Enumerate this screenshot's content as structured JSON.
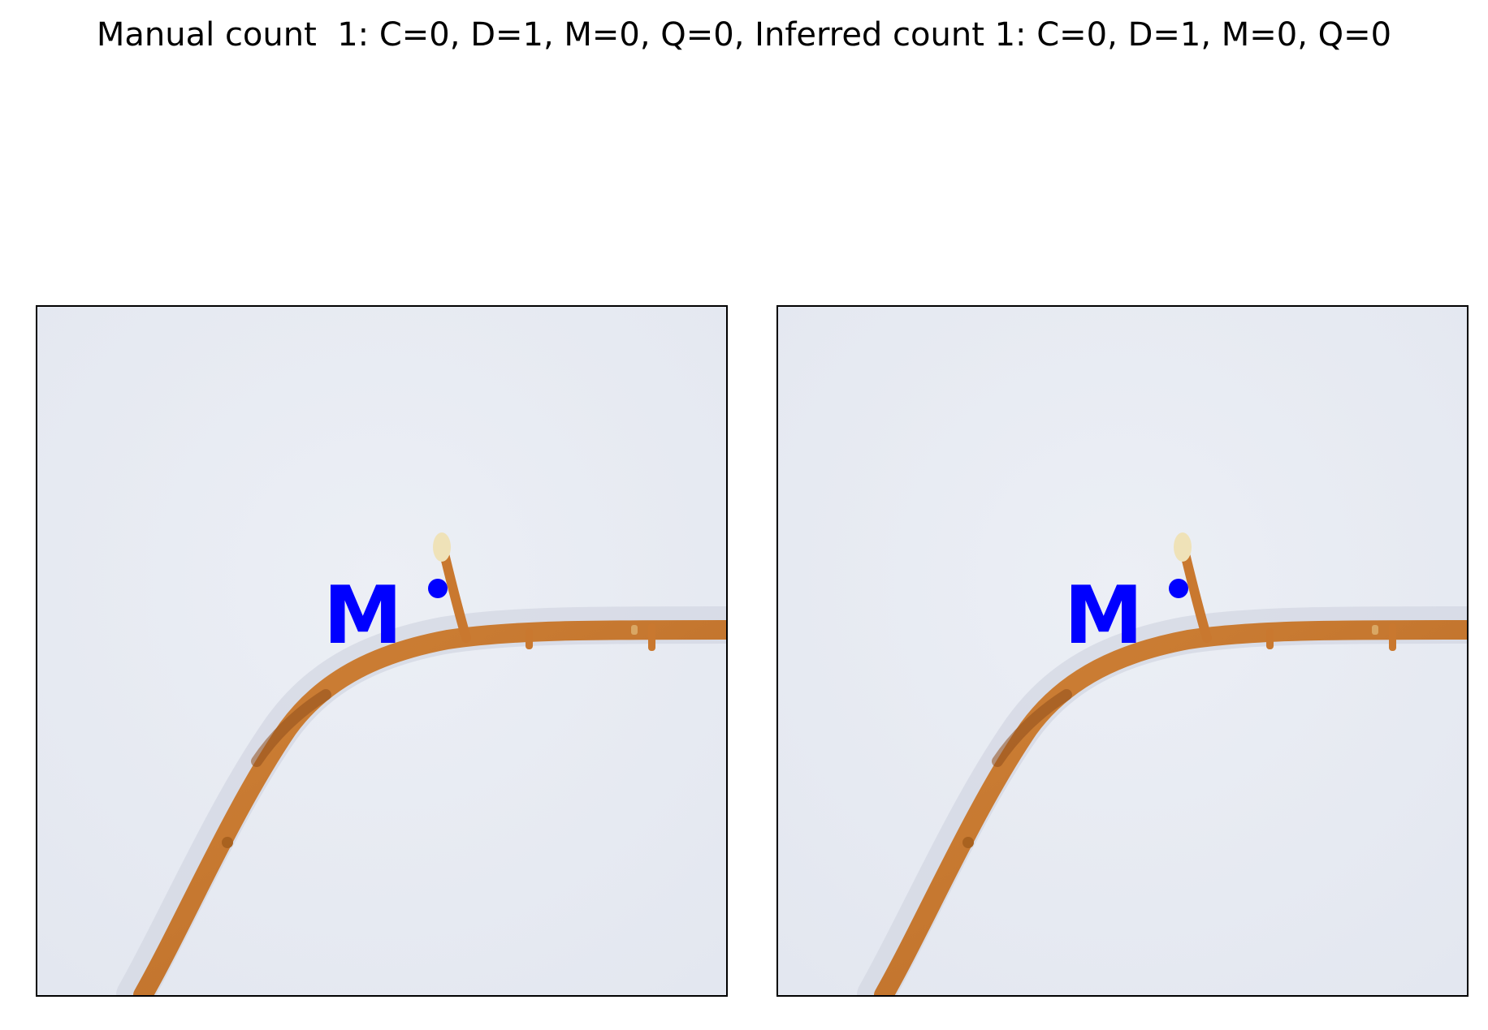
{
  "figure": {
    "title": "Manual count  1: C=0, D=1, M=0, Q=0, Inferred count 1: C=0, D=1, M=0, Q=0"
  },
  "panels": [
    {
      "marker_letter": "M",
      "marker_color": "#0000ff"
    },
    {
      "marker_letter": "M",
      "marker_color": "#0000ff"
    }
  ],
  "colors": {
    "background": "#e8ebf2",
    "root": "#c9782f",
    "root_dark": "#9e5a22",
    "root_tip": "#efe2b8",
    "marker": "#0000ff"
  }
}
